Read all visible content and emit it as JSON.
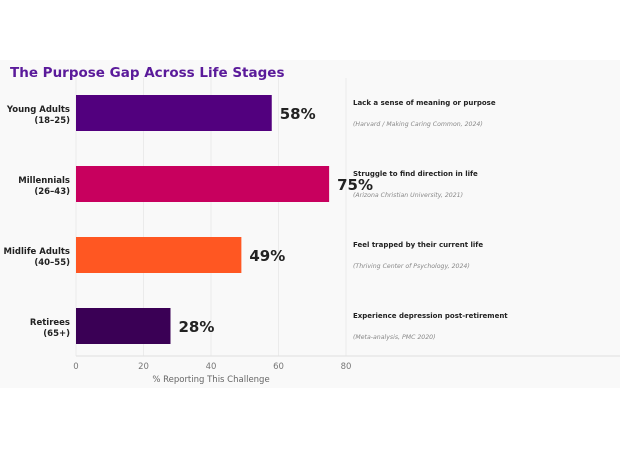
{
  "chart_data": {
    "type": "bar",
    "orientation": "horizontal",
    "title": "The Purpose Gap Across Life Stages",
    "xlabel": "% Reporting This Challenge",
    "ylabel": "",
    "xlim": [
      0,
      80
    ],
    "xticks": [
      0,
      20,
      40,
      60,
      80
    ],
    "grid": true,
    "categories": [
      {
        "name": "Young Adults",
        "range": "(18–25)"
      },
      {
        "name": "Millennials",
        "range": "(26–43)"
      },
      {
        "name": "Midlife Adults",
        "range": "(40–55)"
      },
      {
        "name": "Retirees",
        "range": "(65+)"
      }
    ],
    "values": [
      58,
      75,
      49,
      28
    ],
    "data_labels": [
      "58%",
      "75%",
      "49%",
      "28%"
    ],
    "colors": [
      "#52007e",
      "#c8005e",
      "#ff5722",
      "#3a0055"
    ],
    "annotations": [
      {
        "text": "Lack a sense of meaning or purpose",
        "source": "(Harvard / Making Caring Common, 2024)"
      },
      {
        "text": "Struggle to find direction in life",
        "source": "(Arizona Christian University, 2021)"
      },
      {
        "text": "Feel trapped by their current life",
        "source": "(Thriving Center of Psychology, 2024)"
      },
      {
        "text": "Experience depression post-retirement",
        "source": "(Meta-analysis, PMC 2020)"
      }
    ],
    "title_color": "#5a1a9a"
  }
}
